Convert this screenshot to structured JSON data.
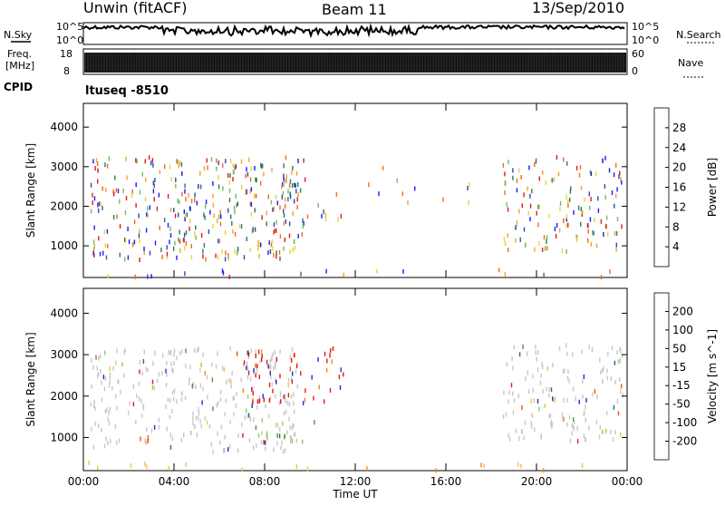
{
  "header": {
    "station": "Unwin (fitACF)",
    "beam": "Beam 11",
    "date": "13/Sep/2010"
  },
  "strips": {
    "nsky_label": "N.Sky",
    "nsearch_label": "N.Search",
    "freq_label_top": "Freq.",
    "freq_label_unit": "[MHz]",
    "nave_label": "Nave",
    "cpid_label": "CPID",
    "cpid_value": "ltuseq -8510",
    "left_top_tick": "10^5",
    "left_bottom_tick": "10^0",
    "right_top_tick": "10^5",
    "right_bottom_tick": "10^0",
    "freq_ticks": [
      "18",
      "8"
    ],
    "nave_ticks": [
      "60",
      "0"
    ]
  },
  "chart_data": [
    {
      "type": "heatmap",
      "name": "power",
      "ylabel": "Slant Range [km]",
      "ylim": [
        200,
        4600
      ],
      "y_ticks": [
        "1000",
        "2000",
        "3000",
        "4000"
      ],
      "x_ticks": [
        "00:00",
        "04:00",
        "08:00",
        "12:00",
        "16:00",
        "20:00",
        "00:00"
      ],
      "xlim_hours": [
        0,
        24
      ],
      "colorbar": {
        "label": "Power [dB]",
        "ticks": [
          "4",
          "8",
          "12",
          "16",
          "20",
          "24",
          "28"
        ],
        "colors": [
          "#1a1aff",
          "#2a4ca8",
          "#2d7a56",
          "#6fbf5a",
          "#e8d23a",
          "#f2a330",
          "#ef6a22",
          "#e11a1a"
        ]
      },
      "blobs": [
        {
          "t0": 0.3,
          "t1": 9.8,
          "r0": 700,
          "r1": 3300,
          "density": 0.55
        },
        {
          "t0": 8.0,
          "t1": 11.5,
          "r0": 1400,
          "r1": 2600,
          "density": 0.25
        },
        {
          "t0": 12.5,
          "t1": 17.5,
          "r0": 2100,
          "r1": 3200,
          "density": 0.08
        },
        {
          "t0": 18.5,
          "t1": 23.8,
          "r0": 900,
          "r1": 3300,
          "density": 0.45
        },
        {
          "t0": 0.2,
          "t1": 23.8,
          "r0": 250,
          "r1": 450,
          "density": 0.15
        }
      ]
    },
    {
      "type": "heatmap",
      "name": "velocity",
      "ylabel": "Slant Range [km]",
      "ylim": [
        200,
        4600
      ],
      "y_ticks": [
        "1000",
        "2000",
        "3000",
        "4000"
      ],
      "x_ticks": [
        "00:00",
        "04:00",
        "08:00",
        "12:00",
        "16:00",
        "20:00",
        "00:00"
      ],
      "xlim_hours": [
        0,
        24
      ],
      "xlabel": "Time UT",
      "colorbar": {
        "label": "Velocity [m s^-1]",
        "ticks": [
          "200",
          "100",
          "50",
          "15",
          "-15",
          "-50",
          "-100",
          "-200"
        ],
        "colors": [
          "#1a2fd6",
          "#2a6e7a",
          "#3d9c3d",
          "#8fd24a",
          "#c8c8c8",
          "#f2c24a",
          "#ef8a1e",
          "#e85a14",
          "#e11a1a"
        ]
      },
      "blobs": [
        {
          "t0": 0.3,
          "t1": 9.5,
          "r0": 700,
          "r1": 3200,
          "density": 0.55,
          "tone": "gray"
        },
        {
          "t0": 7.0,
          "t1": 11.5,
          "r0": 1700,
          "r1": 3200,
          "density": 0.35,
          "tone": "red"
        },
        {
          "t0": 7.5,
          "t1": 10.5,
          "r0": 900,
          "r1": 1500,
          "density": 0.25,
          "tone": "green"
        },
        {
          "t0": 18.5,
          "t1": 23.8,
          "r0": 900,
          "r1": 3300,
          "density": 0.45,
          "tone": "gray"
        },
        {
          "t0": 19.5,
          "t1": 21.0,
          "r0": 1800,
          "r1": 2200,
          "density": 0.35,
          "tone": "orange"
        },
        {
          "t0": 0.2,
          "t1": 23.8,
          "r0": 250,
          "r1": 450,
          "density": 0.15,
          "tone": "orange"
        }
      ]
    }
  ]
}
